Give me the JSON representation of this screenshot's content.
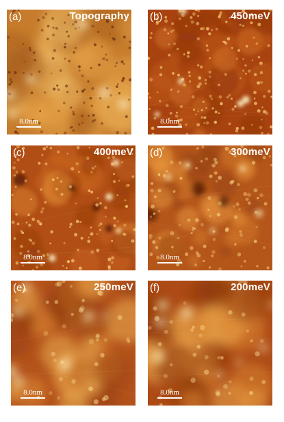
{
  "panels": [
    {
      "label": "(a)",
      "title": "Topography",
      "scale_bar": "8.0nm",
      "style": "topography"
    },
    {
      "label": "(b)",
      "title": "450meV",
      "scale_bar": "8.0nm",
      "style": "map450"
    },
    {
      "label": "(c)",
      "title": "400meV",
      "scale_bar": "8.0nm",
      "style": "map400"
    },
    {
      "label": "(d)",
      "title": "300meV",
      "scale_bar": "8.0nm",
      "style": "map300"
    },
    {
      "label": "(e)",
      "title": "250meV",
      "scale_bar": "8.0nm",
      "style": "map250"
    },
    {
      "label": "(f)",
      "title": "200meV",
      "scale_bar": "8.0nm",
      "style": "map200"
    }
  ],
  "colors": {
    "colormap": "hot-orange",
    "dark": "#7a2c06",
    "mid": "#c4621a",
    "bright": "#fff1b8",
    "text": "#ffffff"
  }
}
